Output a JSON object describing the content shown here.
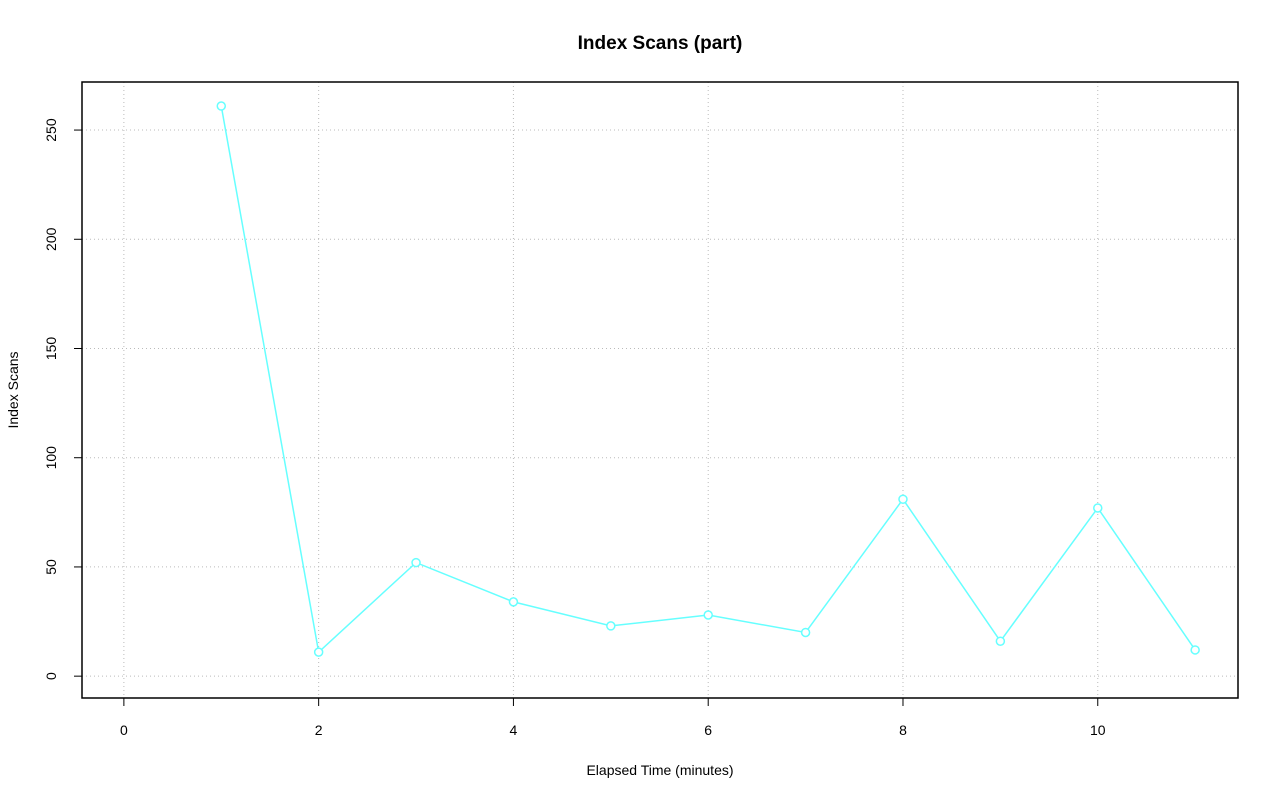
{
  "chart_data": {
    "type": "line",
    "title": "Index Scans (part)",
    "x_label": "Elapsed Time (minutes)",
    "y_label": "Index Scans",
    "x": [
      1,
      2,
      3,
      4,
      5,
      6,
      7,
      8,
      9,
      10,
      11
    ],
    "series": [
      {
        "name": "Index Scans",
        "color": "#66ffff",
        "values": [
          261,
          11,
          52,
          34,
          23,
          28,
          20,
          81,
          16,
          77,
          12
        ]
      }
    ],
    "xlim": [
      -0.43,
      11.44
    ],
    "ylim": [
      -10,
      272
    ],
    "xticks": [
      0,
      2,
      4,
      6,
      8,
      10
    ],
    "yticks": [
      0,
      50,
      100,
      150,
      200,
      250
    ],
    "grid": true
  }
}
